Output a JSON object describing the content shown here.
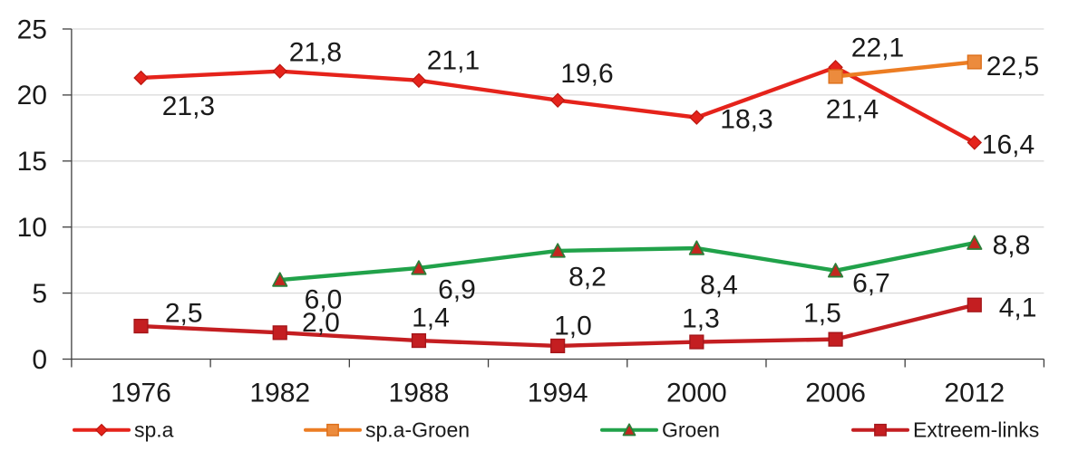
{
  "chart_data": {
    "type": "line",
    "title": "",
    "x_categories": [
      "1976",
      "1982",
      "1988",
      "1994",
      "2000",
      "2006",
      "2012"
    ],
    "y_tick_labels": [
      "0",
      "5",
      "10",
      "15",
      "20",
      "25"
    ],
    "y_ticks": [
      0,
      5,
      10,
      15,
      20,
      25
    ],
    "ylim": [
      0,
      25
    ],
    "grid": "horizontal",
    "decimal_separator": ",",
    "legend_position": "bottom",
    "colors": {
      "axis": "#3f3f3f",
      "gridline": "#d9d9d9",
      "text": "#1a1a1a",
      "background": "#ffffff"
    },
    "series": [
      {
        "name": "sp.a",
        "color": "#e5231b",
        "marker": "diamond",
        "marker_fill": "#e5231b",
        "marker_stroke": "#bb1710",
        "points": [
          {
            "category": "1976",
            "value": 21.3,
            "label": "21,3",
            "label_dx": 52.4,
            "label_dy": 30.6
          },
          {
            "category": "1982",
            "value": 21.8,
            "label": "21,8",
            "label_dx": 39.2,
            "label_dy": -21.6
          },
          {
            "category": "1988",
            "value": 21.1,
            "label": "21,1",
            "label_dx": 38.0,
            "label_dy": -22.8
          },
          {
            "category": "1994",
            "value": 19.6,
            "label": "19,6",
            "label_dx": 32.3,
            "label_dy": -30.2
          },
          {
            "category": "2000",
            "value": 18.3,
            "label": "18,3",
            "label_dx": 55.1,
            "label_dy": 1.7
          },
          {
            "category": "2006",
            "value": 22.1,
            "label": "22,1",
            "label_dx": 46.4,
            "label_dy": -22.3
          },
          {
            "category": "2012",
            "value": 16.4,
            "label": "16,4",
            "label_dx": 37.2,
            "label_dy": 1.6
          }
        ]
      },
      {
        "name": "sp.a-Groen",
        "color": "#ec7d23",
        "marker": "square",
        "marker_fill": "#ec8b3d",
        "marker_stroke": "#dd6f1a",
        "points": [
          {
            "category": "2006",
            "value": 21.4,
            "label": "21,4",
            "label_dx": 18.4,
            "label_dy": 35.5
          },
          {
            "category": "2012",
            "value": 22.5,
            "label": "22,5",
            "label_dx": 42.2,
            "label_dy": 4.1
          }
        ]
      },
      {
        "name": "Groen",
        "color": "#21a24a",
        "marker": "triangle",
        "marker_fill": "#c3271f",
        "marker_stroke": "#2d7d38",
        "points": [
          {
            "category": "1982",
            "value": 6.0,
            "label": "6,0",
            "label_dx": 47.8,
            "label_dy": 21.0
          },
          {
            "category": "1988",
            "value": 6.9,
            "label": "6,9",
            "label_dx": 42.0,
            "label_dy": 23.1
          },
          {
            "category": "1994",
            "value": 8.2,
            "label": "8,2",
            "label_dx": 32.8,
            "label_dy": 28.1
          },
          {
            "category": "2000",
            "value": 8.4,
            "label": "8,4",
            "label_dx": 24.6,
            "label_dy": 40.0
          },
          {
            "category": "2006",
            "value": 6.7,
            "label": "6,7",
            "label_dx": 39.4,
            "label_dy": 13.2
          },
          {
            "category": "2012",
            "value": 8.8,
            "label": "8,8",
            "label_dx": 40.7,
            "label_dy": 1.8
          }
        ]
      },
      {
        "name": "Extreem-links",
        "color": "#c41e21",
        "marker": "square",
        "marker_fill": "#c41e21",
        "marker_stroke": "#a4161a",
        "points": [
          {
            "category": "1976",
            "value": 2.5,
            "label": "2,5",
            "label_dx": 47.2,
            "label_dy": -14.7
          },
          {
            "category": "1982",
            "value": 2.0,
            "label": "2,0",
            "label_dx": 45.2,
            "label_dy": -11.8
          },
          {
            "category": "1988",
            "value": 1.4,
            "label": "1,4",
            "label_dx": 13.0,
            "label_dy": -26.1
          },
          {
            "category": "1994",
            "value": 1.0,
            "label": "1,0",
            "label_dx": 16.8,
            "label_dy": -22.9
          },
          {
            "category": "2000",
            "value": 1.3,
            "label": "1,3",
            "label_dx": 4.6,
            "label_dy": -26.5
          },
          {
            "category": "2006",
            "value": 1.5,
            "label": "1,5",
            "label_dx": -14.6,
            "label_dy": -29.6
          },
          {
            "category": "2012",
            "value": 4.1,
            "label": "4,1",
            "label_dx": 47.8,
            "label_dy": 2.3
          }
        ]
      }
    ]
  }
}
